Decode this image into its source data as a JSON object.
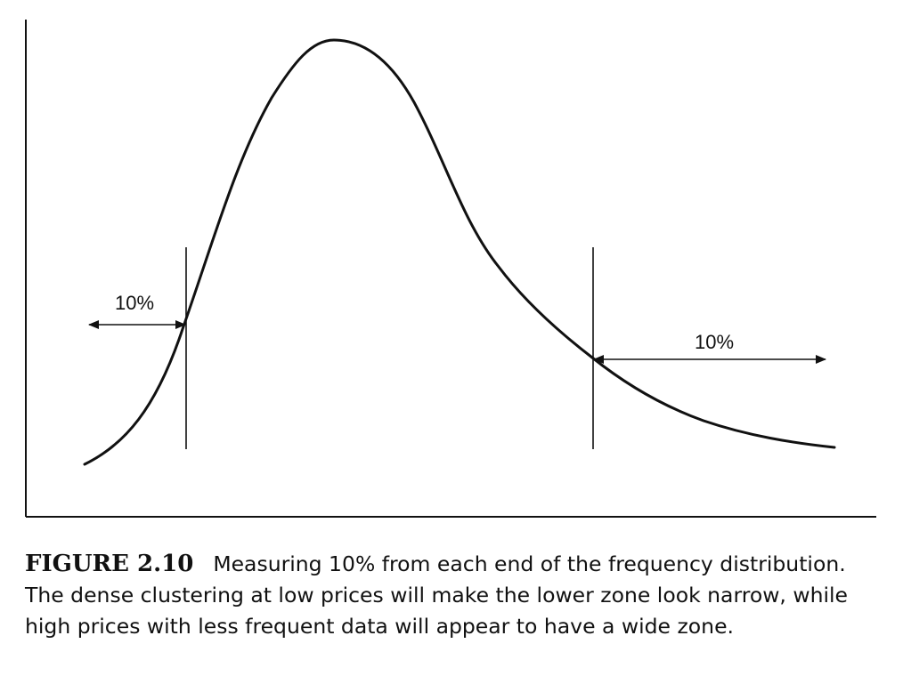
{
  "figure": {
    "left_marker_label": "10%",
    "right_marker_label": "10%"
  },
  "caption": {
    "label": "FIGURE 2.10",
    "text": "Measuring 10% from each end of the frequency distribution. The dense clustering at low prices will make the lower zone look narrow, while high prices with less frequent data will appear to have a wide zone."
  },
  "colors": {
    "ink": "#111111",
    "background": "#ffffff"
  }
}
